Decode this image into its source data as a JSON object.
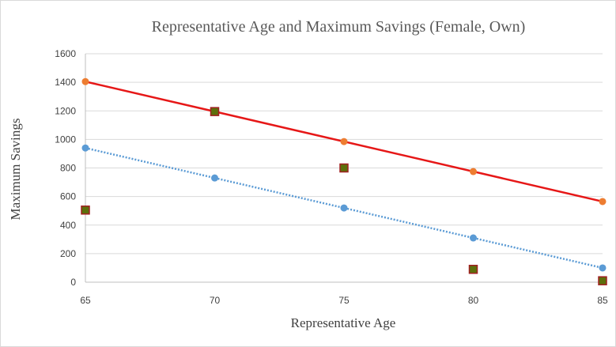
{
  "chart_data": {
    "type": "scatter",
    "title": "Representative Age and Maximum Savings (Female, Own)",
    "xlabel": "Representative Age",
    "ylabel": "Maximum Savings",
    "xlim": [
      65,
      85
    ],
    "ylim": [
      0,
      1600
    ],
    "x_ticks": [
      65,
      70,
      75,
      80,
      85
    ],
    "y_ticks": [
      0,
      200,
      400,
      600,
      800,
      1000,
      1200,
      1400,
      1600
    ],
    "grid": "horizontal",
    "legend": "none",
    "series": [
      {
        "x": [
          65,
          70,
          75,
          80,
          85
        ],
        "values": [
          1405,
          1195,
          985,
          775,
          565
        ],
        "marker": "circle",
        "marker_color": "#ED7D31",
        "trendline": {
          "style": "solid",
          "color": "#E61717"
        }
      },
      {
        "x": [
          65,
          70,
          75,
          80,
          85
        ],
        "values": [
          940,
          730,
          520,
          310,
          100
        ],
        "marker": "circle",
        "marker_color": "#5B9BD5",
        "trendline": {
          "style": "dotted",
          "color": "#5B9BD5"
        }
      },
      {
        "x": [
          65,
          70,
          75,
          80,
          85
        ],
        "values": [
          505,
          1195,
          800,
          90,
          10
        ],
        "marker": "square",
        "marker_color": "#5C6F0B",
        "marker_edge": "#A02020"
      }
    ]
  }
}
